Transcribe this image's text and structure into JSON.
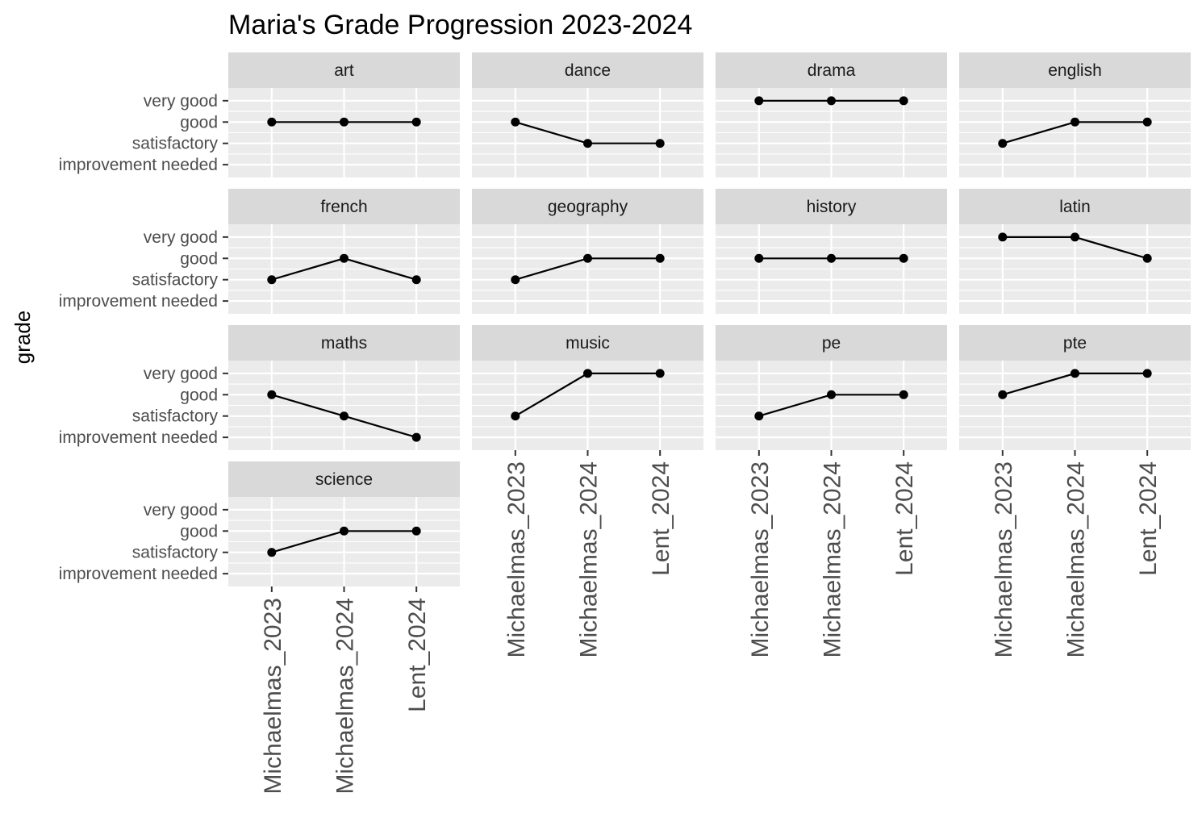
{
  "chart_data": {
    "type": "line",
    "title": "Maria's Grade Progression 2023-2024",
    "xlabel": "",
    "ylabel": "grade",
    "x": [
      "Michaelmas_2023",
      "Michaelmas_2024",
      "Lent_2024"
    ],
    "y_levels": [
      "improvement needed",
      "satisfactory",
      "good",
      "very good"
    ],
    "facet_columns": 4,
    "grid": true,
    "legend": "none",
    "colors": {
      "panel_background": "#ebebeb",
      "strip_background": "#d9d9d9",
      "grid": "#ffffff",
      "line": "#000000",
      "point": "#000000"
    },
    "series": [
      {
        "name": "art",
        "values": [
          "good",
          "good",
          "good"
        ]
      },
      {
        "name": "dance",
        "values": [
          "good",
          "satisfactory",
          "satisfactory"
        ]
      },
      {
        "name": "drama",
        "values": [
          "very good",
          "very good",
          "very good"
        ]
      },
      {
        "name": "english",
        "values": [
          "satisfactory",
          "good",
          "good"
        ]
      },
      {
        "name": "french",
        "values": [
          "satisfactory",
          "good",
          "satisfactory"
        ]
      },
      {
        "name": "geography",
        "values": [
          "satisfactory",
          "good",
          "good"
        ]
      },
      {
        "name": "history",
        "values": [
          "good",
          "good",
          "good"
        ]
      },
      {
        "name": "latin",
        "values": [
          "very good",
          "very good",
          "good"
        ]
      },
      {
        "name": "maths",
        "values": [
          "good",
          "satisfactory",
          "improvement needed"
        ]
      },
      {
        "name": "music",
        "values": [
          "satisfactory",
          "very good",
          "very good"
        ]
      },
      {
        "name": "pe",
        "values": [
          "satisfactory",
          "good",
          "good"
        ]
      },
      {
        "name": "pte",
        "values": [
          "good",
          "very good",
          "very good"
        ]
      },
      {
        "name": "science",
        "values": [
          "satisfactory",
          "good",
          "good"
        ]
      }
    ]
  }
}
